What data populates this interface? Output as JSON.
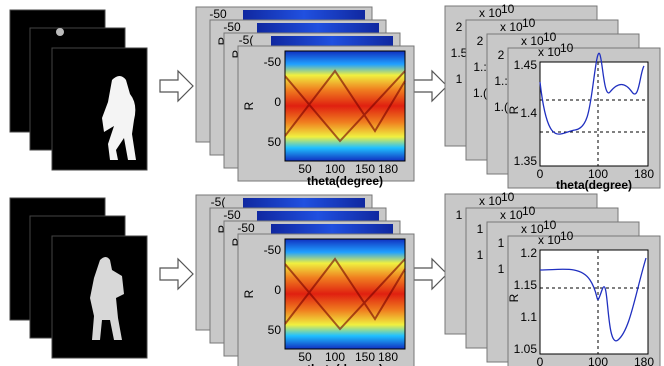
{
  "rows": [
    {
      "radon": {
        "back_panels": [
          {
            "y_ticks": [
              "-50"
            ]
          },
          {
            "y_ticks": [
              "-50",
              "R",
              "0",
              "50"
            ]
          },
          {
            "y_ticks": [
              "-5(",
              "R",
              "0",
              "50"
            ]
          }
        ],
        "front": {
          "y_label": "R",
          "y_ticks": [
            "-50",
            "0",
            "50"
          ],
          "x_ticks": [
            "50",
            "100",
            "150",
            "180"
          ],
          "x_label": "theta(degree)"
        }
      },
      "plot": {
        "back_panels": [
          {
            "exponent": "x 10",
            "power": "10",
            "y_ticks": [
              "2",
              "1.5",
              "1"
            ]
          },
          {
            "exponent": "x 10",
            "power": "10",
            "y_ticks": [
              "2",
              "1.:",
              "1.("
            ]
          },
          {
            "exponent": "x 10",
            "power": "10",
            "y_ticks": [
              "2",
              "1.:",
              "1.("
            ]
          }
        ],
        "front": {
          "exponent": "x 10",
          "power": "10",
          "y_label": "R",
          "y_ticks": [
            "1.45",
            "1.4",
            "1.35"
          ],
          "x_ticks": [
            "0",
            "100",
            "180"
          ],
          "x_label": "theta(degree)"
        }
      }
    },
    {
      "radon": {
        "back_panels": [
          {
            "y_ticks": [
              "-5("
            ]
          },
          {
            "y_ticks": [
              "-50",
              "R",
              "0",
              "50"
            ]
          },
          {
            "y_ticks": [
              "-50",
              "R",
              "0",
              "50"
            ]
          }
        ],
        "front": {
          "y_label": "R",
          "y_ticks": [
            "-50",
            "0",
            "50"
          ],
          "x_ticks": [
            "50",
            "100",
            "150",
            "180"
          ],
          "x_label": "theta(degree)"
        }
      },
      "plot": {
        "back_panels": [
          {
            "exponent": "x 10",
            "power": "10",
            "y_ticks": [
              "1"
            ]
          },
          {
            "exponent": "x 10",
            "power": "10",
            "y_ticks": [
              "1",
              "1"
            ]
          },
          {
            "exponent": "x 10",
            "power": "10",
            "y_ticks": [
              "1",
              "1"
            ]
          }
        ],
        "front": {
          "exponent": "x 10",
          "power": "10",
          "y_label": "R",
          "y_ticks": [
            "1.2",
            "1.15",
            "1.1",
            "1.05"
          ],
          "x_ticks": [
            "0",
            "100",
            "180"
          ],
          "x_label": "theta(degree)"
        }
      }
    }
  ]
}
